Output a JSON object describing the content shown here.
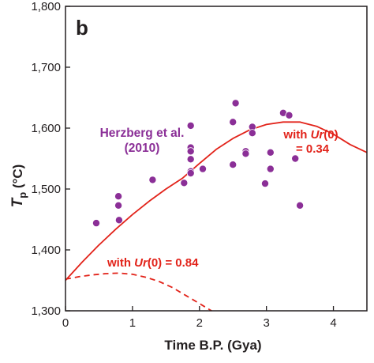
{
  "chart_data": {
    "type": "scatter",
    "panel_label": "b",
    "xlabel": "Time B.P. (Gya)",
    "ylabel_main": "T",
    "ylabel_sub": "p",
    "ylabel_unit": " (°C)",
    "xlim": [
      0,
      4.5
    ],
    "ylim": [
      1300,
      1800
    ],
    "x_ticks": [
      0,
      1,
      2,
      3,
      4
    ],
    "x_tick_labels": [
      "0",
      "1",
      "2",
      "3",
      "4"
    ],
    "y_ticks": [
      1300,
      1400,
      1500,
      1600,
      1700,
      1800
    ],
    "y_tick_labels": [
      "1,300",
      "1,400",
      "1,500",
      "1,600",
      "1,700",
      "1,800"
    ],
    "grid": false,
    "colors": {
      "points": "#8b2f97",
      "curves": "#e2231a",
      "axis": "#231f20"
    },
    "scatter_series": {
      "label_line1": "Herzberg et al.",
      "label_line2": "(2010)",
      "points": [
        {
          "x": 0.46,
          "y": 1444
        },
        {
          "x": 0.79,
          "y": 1488
        },
        {
          "x": 0.79,
          "y": 1473
        },
        {
          "x": 0.8,
          "y": 1449
        },
        {
          "x": 1.3,
          "y": 1515
        },
        {
          "x": 1.77,
          "y": 1510
        },
        {
          "x": 1.87,
          "y": 1604
        },
        {
          "x": 1.87,
          "y": 1568
        },
        {
          "x": 1.87,
          "y": 1562
        },
        {
          "x": 1.87,
          "y": 1549
        },
        {
          "x": 1.87,
          "y": 1529
        },
        {
          "x": 1.87,
          "y": 1526
        },
        {
          "x": 2.05,
          "y": 1533
        },
        {
          "x": 2.5,
          "y": 1610
        },
        {
          "x": 2.5,
          "y": 1540
        },
        {
          "x": 2.54,
          "y": 1641
        },
        {
          "x": 2.69,
          "y": 1562
        },
        {
          "x": 2.69,
          "y": 1558
        },
        {
          "x": 2.79,
          "y": 1602
        },
        {
          "x": 2.79,
          "y": 1592
        },
        {
          "x": 2.98,
          "y": 1509
        },
        {
          "x": 3.06,
          "y": 1560
        },
        {
          "x": 3.06,
          "y": 1533
        },
        {
          "x": 3.25,
          "y": 1625
        },
        {
          "x": 3.34,
          "y": 1621
        },
        {
          "x": 3.43,
          "y": 1550
        },
        {
          "x": 3.5,
          "y": 1473
        }
      ]
    },
    "curves": [
      {
        "label_line1": "with Ur(0)",
        "label_line2": "= 0.34",
        "style": "solid",
        "points": [
          [
            0,
            1350
          ],
          [
            0.25,
            1380
          ],
          [
            0.5,
            1408
          ],
          [
            0.75,
            1434
          ],
          [
            1.0,
            1458
          ],
          [
            1.25,
            1480
          ],
          [
            1.5,
            1500
          ],
          [
            1.75,
            1518
          ],
          [
            2.0,
            1542
          ],
          [
            2.25,
            1565
          ],
          [
            2.5,
            1583
          ],
          [
            2.75,
            1597
          ],
          [
            3.0,
            1606
          ],
          [
            3.25,
            1610
          ],
          [
            3.5,
            1610
          ],
          [
            3.75,
            1603
          ],
          [
            4.0,
            1590
          ],
          [
            4.25,
            1573
          ],
          [
            4.5,
            1560
          ]
        ]
      },
      {
        "label": "with Ur(0) = 0.84",
        "style": "dashed",
        "points": [
          [
            0,
            1352
          ],
          [
            0.2,
            1356
          ],
          [
            0.4,
            1359
          ],
          [
            0.6,
            1361
          ],
          [
            0.8,
            1362
          ],
          [
            1.0,
            1360
          ],
          [
            1.2,
            1355
          ],
          [
            1.4,
            1348
          ],
          [
            1.6,
            1338
          ],
          [
            1.8,
            1325
          ],
          [
            2.0,
            1312
          ],
          [
            2.15,
            1302
          ],
          [
            2.18,
            1300
          ]
        ]
      }
    ]
  }
}
